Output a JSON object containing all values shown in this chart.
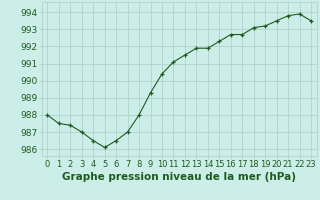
{
  "hours": [
    0,
    1,
    2,
    3,
    4,
    5,
    6,
    7,
    8,
    9,
    10,
    11,
    12,
    13,
    14,
    15,
    16,
    17,
    18,
    19,
    20,
    21,
    22,
    23
  ],
  "pressure": [
    988.0,
    987.5,
    987.4,
    987.0,
    986.5,
    986.1,
    986.5,
    987.0,
    988.0,
    989.3,
    990.4,
    991.1,
    991.5,
    991.9,
    991.9,
    992.3,
    992.7,
    992.7,
    993.1,
    993.2,
    993.5,
    993.8,
    993.9,
    993.5
  ],
  "line_color": "#1e5c1e",
  "marker": "+",
  "bg_color": "#cceee8",
  "grid_color": "#b0ccc8",
  "ylabel_values": [
    986,
    987,
    988,
    989,
    990,
    991,
    992,
    993,
    994
  ],
  "ylim": [
    985.6,
    994.6
  ],
  "xlim": [
    -0.5,
    23.5
  ],
  "xlabel": "Graphe pression niveau de la mer (hPa)",
  "xlabel_fontsize": 7.5,
  "tick_fontsize": 6.5,
  "label_color": "#1e5c1e"
}
